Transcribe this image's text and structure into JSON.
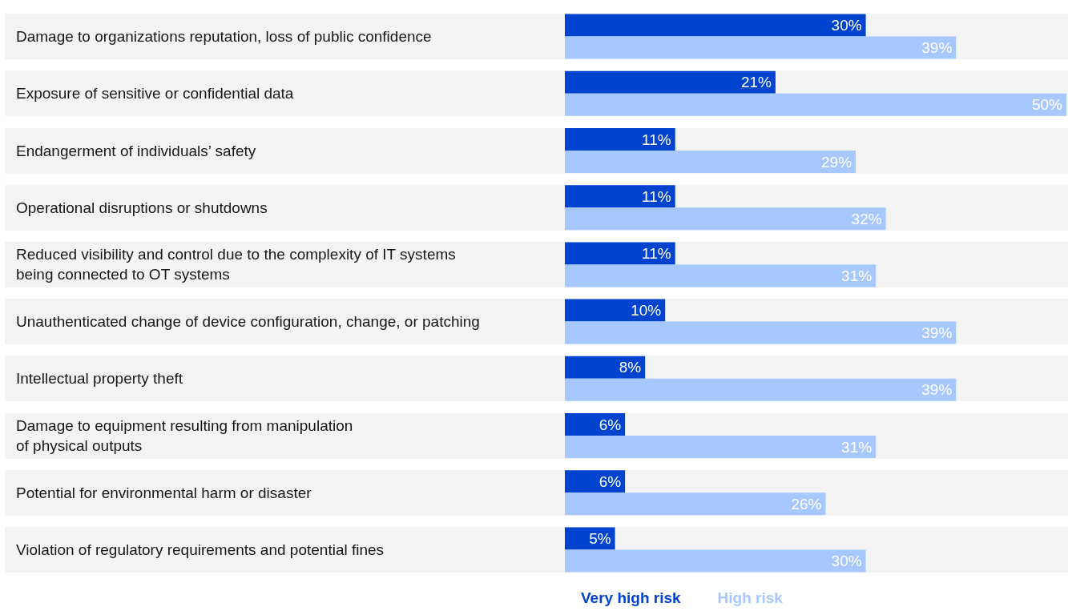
{
  "chart_data": {
    "type": "bar",
    "orientation": "horizontal",
    "legend": "bottom",
    "categories": [
      "Damage to organizations reputation, loss of public confidence",
      "Exposure of sensitive or confidential data",
      "Endangerment of individuals’ safety",
      "Operational disruptions or shutdowns",
      "Reduced visibility and control due to the complexity of IT systems\nbeing connected to OT systems",
      "Unauthenticated change of device configuration, change, or patching",
      "Intellectual property theft",
      "Damage to equipment resulting from manipulation\nof physical outputs",
      "Potential for environmental harm or disaster",
      "Violation of regulatory requirements and potential fines"
    ],
    "series": [
      {
        "name": "Very high risk",
        "color": "#0043ce",
        "values": [
          30,
          21,
          11,
          11,
          11,
          10,
          8,
          6,
          6,
          5
        ],
        "value_labels": [
          "30%",
          "21%",
          "11%",
          "11%",
          "11%",
          "10%",
          "8%",
          "6%",
          "6%",
          "5%"
        ]
      },
      {
        "name": "High risk",
        "color": "#a6c8ff",
        "values": [
          39,
          50,
          29,
          32,
          31,
          39,
          39,
          31,
          26,
          30
        ],
        "value_labels": [
          "39%",
          "50%",
          "29%",
          "32%",
          "31%",
          "39%",
          "39%",
          "31%",
          "26%",
          "30%"
        ]
      }
    ]
  }
}
